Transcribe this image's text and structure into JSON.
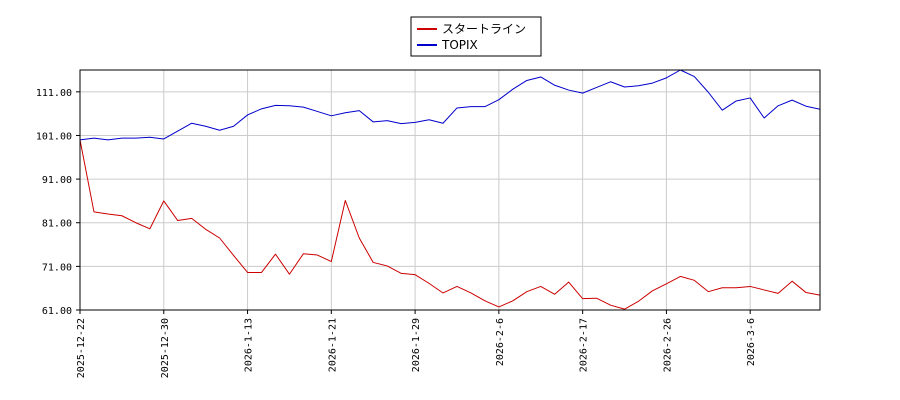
{
  "chart_data": {
    "type": "line",
    "title": "",
    "xlabel": "",
    "ylabel": "",
    "ylim": [
      61.0,
      116.0
    ],
    "y_ticks": [
      "61.00",
      "71.00",
      "81.00",
      "91.00",
      "101.00",
      "111.00"
    ],
    "y_tick_values": [
      61,
      71,
      81,
      91,
      101,
      111
    ],
    "x_tick_labels": [
      "2025-12-22",
      "2025-12-30",
      "2026-1-13",
      "2026-1-21",
      "2026-1-29",
      "2026-2-6",
      "2026-2-17",
      "2026-2-26",
      "2026-3-6"
    ],
    "x_tick_indices": [
      0,
      6,
      12,
      18,
      24,
      30,
      36,
      42,
      48
    ],
    "n_points": 54,
    "grid": true,
    "legend": "top-center",
    "series": [
      {
        "name": "スタートライン",
        "color": "#cc0000",
        "values": [
          100.0,
          83.5,
          83.0,
          82.6,
          81.0,
          79.6,
          86.0,
          81.5,
          82.0,
          79.5,
          77.5,
          73.5,
          69.6,
          69.6,
          73.8,
          69.2,
          73.9,
          73.6,
          72.1,
          86.1,
          77.5,
          71.9,
          71.1,
          69.4,
          69.1,
          67.1,
          64.9,
          66.4,
          64.9,
          63.1,
          61.7,
          63.1,
          65.2,
          66.4,
          64.6,
          67.4,
          63.6,
          63.7,
          62.1,
          61.2,
          63.0,
          65.4,
          67.0,
          68.7,
          67.8,
          65.2,
          66.1,
          66.1,
          66.4,
          65.6,
          64.8,
          67.6,
          65.0,
          64.4
        ]
      },
      {
        "name": "TOPIX",
        "color": "#0000cc",
        "values": [
          100.0,
          100.4,
          100.0,
          100.4,
          100.4,
          100.6,
          100.2,
          102.0,
          103.8,
          103.1,
          102.2,
          103.1,
          105.7,
          107.1,
          107.9,
          107.8,
          107.5,
          106.5,
          105.5,
          106.2,
          106.7,
          104.1,
          104.4,
          103.7,
          104.0,
          104.6,
          103.8,
          107.3,
          107.6,
          107.6,
          109.2,
          111.6,
          113.6,
          114.4,
          112.5,
          111.4,
          110.7,
          112.0,
          113.3,
          112.1,
          112.4,
          113.0,
          114.2,
          116.0,
          114.5,
          110.9,
          106.8,
          108.9,
          109.6,
          105.0,
          107.8,
          109.1,
          107.7,
          107.0
        ]
      }
    ]
  }
}
